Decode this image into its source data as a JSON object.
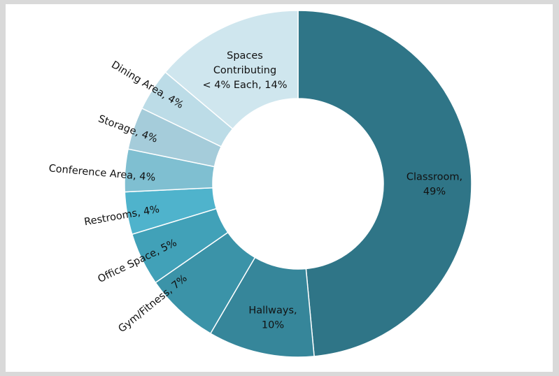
{
  "chart_data": {
    "type": "pie",
    "donut": true,
    "title": "",
    "slices": [
      {
        "label": "Classroom",
        "value": 49,
        "percent_label": "49%",
        "color": "#2f7587",
        "text_lines": [
          "Classroom,",
          "49%"
        ]
      },
      {
        "label": "Hallways",
        "value": 10,
        "percent_label": "10%",
        "color": "#36869a",
        "text_lines": [
          "Hallways,",
          "10%"
        ]
      },
      {
        "label": "Gym/Fitness",
        "value": 7,
        "percent_label": "7%",
        "color": "#3b93a8",
        "text_lines": [
          "Gym/Fitness, 7%"
        ]
      },
      {
        "label": "Office Space",
        "value": 5,
        "percent_label": "5%",
        "color": "#41a1b8",
        "text_lines": [
          "Office Space, 5%"
        ]
      },
      {
        "label": "Restrooms",
        "value": 4,
        "percent_label": "4%",
        "color": "#4fb3cc",
        "text_lines": [
          "Restrooms, 4%"
        ]
      },
      {
        "label": "Conference Area",
        "value": 4,
        "percent_label": "4%",
        "color": "#7fbfd1",
        "text_lines": [
          "Conference Area, 4%"
        ]
      },
      {
        "label": "Storage",
        "value": 4,
        "percent_label": "4%",
        "color": "#a5ccda",
        "text_lines": [
          "Storage, 4%"
        ]
      },
      {
        "label": "Dining Area",
        "value": 4,
        "percent_label": "4%",
        "color": "#bcdce7",
        "text_lines": [
          "Dining Area, 4%"
        ]
      },
      {
        "label": "Spaces Contributing < 4% Each",
        "value": 14,
        "percent_label": "14%",
        "color": "#cfe6ee",
        "text_lines": [
          "Spaces",
          "Contributing",
          "< 4% Each, 14%"
        ]
      }
    ]
  }
}
